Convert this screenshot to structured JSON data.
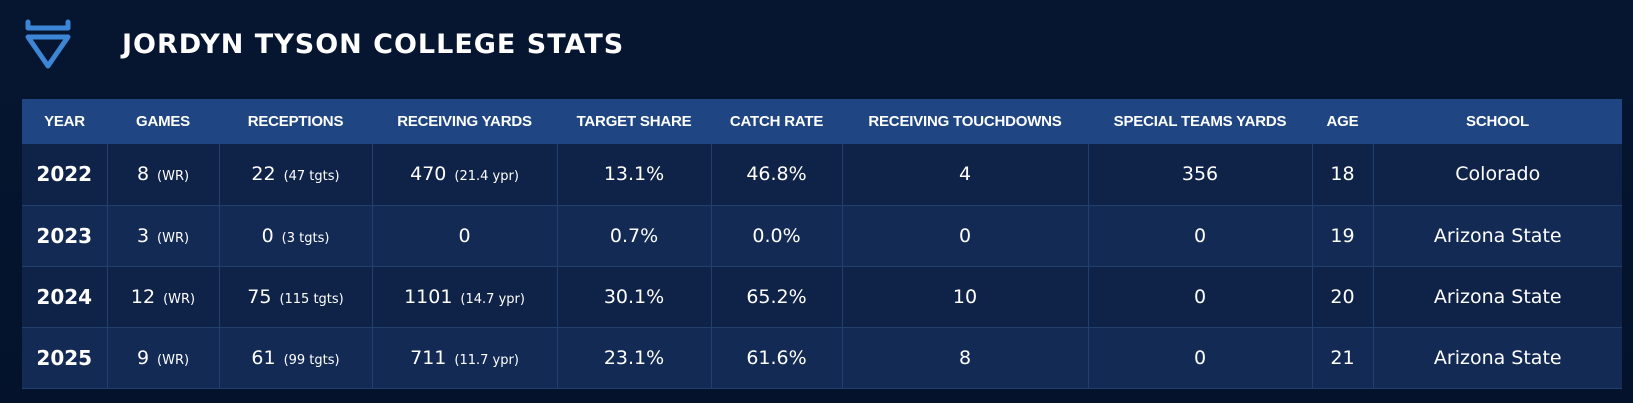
{
  "header": {
    "title": "JORDYN TYSON COLLEGE STATS",
    "logo_icon": "shield-chevron-icon",
    "logo_color": "#3d86d6"
  },
  "table": {
    "columns": [
      "YEAR",
      "GAMES",
      "RECEPTIONS",
      "RECEIVING YARDS",
      "TARGET SHARE",
      "CATCH RATE",
      "RECEIVING TOUCHDOWNS",
      "SPECIAL TEAMS YARDS",
      "AGE",
      "SCHOOL"
    ],
    "rows": [
      {
        "year": "2022",
        "games": "8",
        "games_note": "(WR)",
        "receptions": "22",
        "receptions_note": "(47 tgts)",
        "yards": "470",
        "yards_note": "(21.4 ypr)",
        "target_share": "13.1%",
        "catch_rate": "46.8%",
        "touchdowns": "4",
        "st_yards": "356",
        "age": "18",
        "school": "Colorado"
      },
      {
        "year": "2023",
        "games": "3",
        "games_note": "(WR)",
        "receptions": "0",
        "receptions_note": "(3 tgts)",
        "yards": "0",
        "yards_note": "",
        "target_share": "0.7%",
        "catch_rate": "0.0%",
        "touchdowns": "0",
        "st_yards": "0",
        "age": "19",
        "school": "Arizona State"
      },
      {
        "year": "2024",
        "games": "12",
        "games_note": "(WR)",
        "receptions": "75",
        "receptions_note": "(115 tgts)",
        "yards": "1101",
        "yards_note": "(14.7 ypr)",
        "target_share": "30.1%",
        "catch_rate": "65.2%",
        "touchdowns": "10",
        "st_yards": "0",
        "age": "20",
        "school": "Arizona State"
      },
      {
        "year": "2025",
        "games": "9",
        "games_note": "(WR)",
        "receptions": "61",
        "receptions_note": "(99 tgts)",
        "yards": "711",
        "yards_note": "(11.7 ypr)",
        "target_share": "23.1%",
        "catch_rate": "61.6%",
        "touchdowns": "8",
        "st_yards": "0",
        "age": "21",
        "school": "Arizona State"
      }
    ]
  },
  "colors": {
    "background": "#04142d",
    "header_row": "#1f4683",
    "row_odd": "#0f2348",
    "row_even": "#122a54",
    "accent": "#3d86d6"
  }
}
